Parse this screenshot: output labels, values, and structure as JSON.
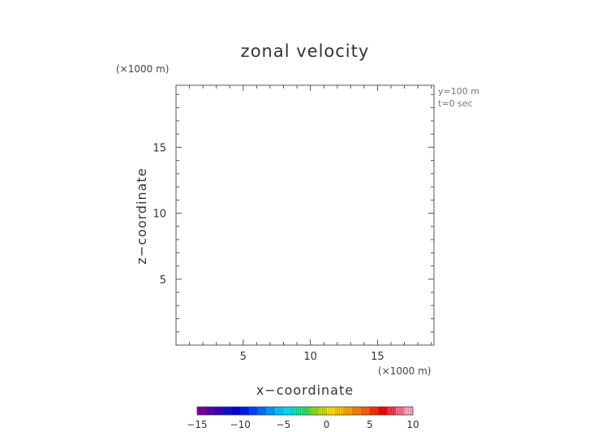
{
  "chart_data": {
    "type": "heatmap",
    "title": "zonal velocity",
    "xlabel": "x−coordinate",
    "ylabel": "z−coordinate",
    "x_unit": "(×1000 m)",
    "y_unit": "(×1000 m)",
    "xlim": [
      0,
      19.2
    ],
    "ylim": [
      0,
      19.7
    ],
    "xticks": [
      5,
      10,
      15
    ],
    "yticks": [
      5,
      10,
      15
    ],
    "x_tick_labels": [
      "5",
      "10",
      "15"
    ],
    "y_tick_labels": [
      "5",
      "10",
      "15"
    ],
    "minor_tick_step": 1,
    "annotations": [
      "y=100 m",
      "t=0 sec"
    ],
    "grid": false,
    "data": [],
    "colorbar": {
      "range": [
        -15,
        10
      ],
      "tick_values": [
        -15,
        -10,
        -5,
        0,
        5,
        10
      ],
      "tick_labels": [
        "−15",
        "−10",
        "−5",
        "0",
        "5",
        "10"
      ],
      "colors": [
        "#7a00a8",
        "#5a00b0",
        "#3a00c0",
        "#1010d0",
        "#0000e6",
        "#0018ff",
        "#0044ff",
        "#0070ff",
        "#009cff",
        "#00c4ff",
        "#00e0f0",
        "#00e8b0",
        "#30e060",
        "#80e020",
        "#c0e000",
        "#ffe000",
        "#ffc000",
        "#ffa000",
        "#ff8000",
        "#ff6000",
        "#ff3000",
        "#ff0000",
        "#ff3050",
        "#ff7090",
        "#ffa8c0"
      ]
    }
  }
}
